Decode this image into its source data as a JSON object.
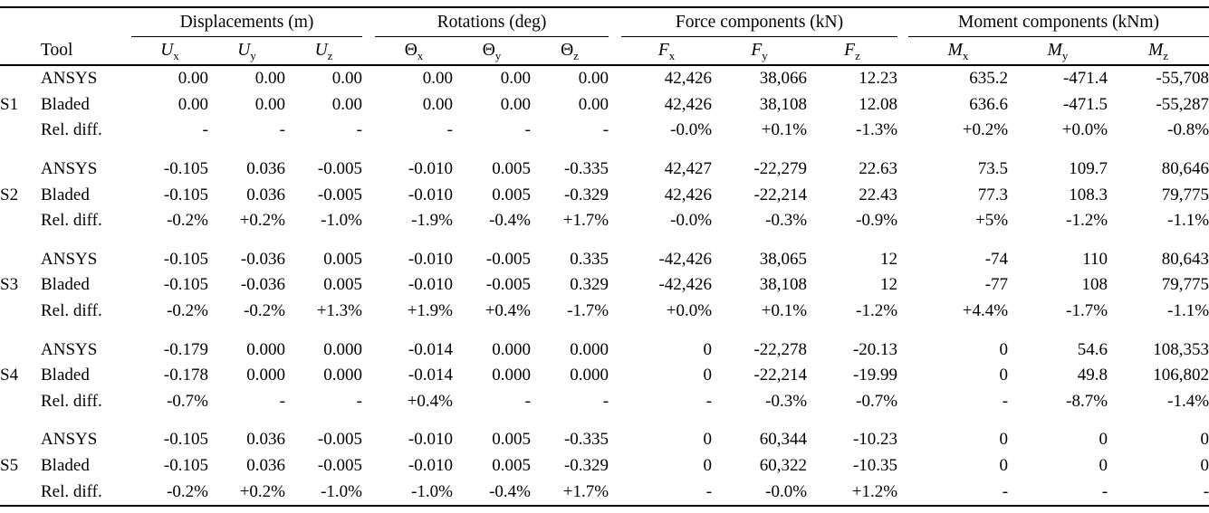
{
  "table": {
    "tool_header": "Tool",
    "group_headers": [
      {
        "label": "Displacements (m)"
      },
      {
        "label": "Rotations (deg)"
      },
      {
        "label": "Force components (kN)"
      },
      {
        "label": "Moment components (kNm)"
      }
    ],
    "columns": [
      {
        "sym": "U",
        "sub": "x",
        "italic": true
      },
      {
        "sym": "U",
        "sub": "y",
        "italic": true
      },
      {
        "sym": "U",
        "sub": "z",
        "italic": true
      },
      {
        "sym": "Θ",
        "sub": "x",
        "italic": false
      },
      {
        "sym": "Θ",
        "sub": "y",
        "italic": false
      },
      {
        "sym": "Θ",
        "sub": "z",
        "italic": false
      },
      {
        "sym": "F",
        "sub": "x",
        "italic": true
      },
      {
        "sym": "F",
        "sub": "y",
        "italic": true
      },
      {
        "sym": "F",
        "sub": "z",
        "italic": true
      },
      {
        "sym": "M",
        "sub": "x",
        "italic": true
      },
      {
        "sym": "M",
        "sub": "y",
        "italic": true
      },
      {
        "sym": "M",
        "sub": "z",
        "italic": true
      }
    ],
    "groups": [
      {
        "id": "S1",
        "rows": [
          {
            "tool": "ANSYS",
            "values": [
              "0.00",
              "0.00",
              "0.00",
              "0.00",
              "0.00",
              "0.00",
              "42,426",
              "38,066",
              "12.23",
              "635.2",
              "-471.4",
              "-55,708"
            ]
          },
          {
            "tool": "Bladed",
            "values": [
              "0.00",
              "0.00",
              "0.00",
              "0.00",
              "0.00",
              "0.00",
              "42,426",
              "38,108",
              "12.08",
              "636.6",
              "-471.5",
              "-55,287"
            ]
          },
          {
            "tool": "Rel. diff.",
            "values": [
              "-",
              "-",
              "-",
              "-",
              "-",
              "-",
              "-0.0%",
              "+0.1%",
              "-1.3%",
              "+0.2%",
              "+0.0%",
              "-0.8%"
            ]
          }
        ]
      },
      {
        "id": "S2",
        "rows": [
          {
            "tool": "ANSYS",
            "values": [
              "-0.105",
              "0.036",
              "-0.005",
              "-0.010",
              "0.005",
              "-0.335",
              "42,427",
              "-22,279",
              "22.63",
              "73.5",
              "109.7",
              "80,646"
            ]
          },
          {
            "tool": "Bladed",
            "values": [
              "-0.105",
              "0.036",
              "-0.005",
              "-0.010",
              "0.005",
              "-0.329",
              "42,426",
              "-22,214",
              "22.43",
              "77.3",
              "108.3",
              "79,775"
            ]
          },
          {
            "tool": "Rel. diff.",
            "values": [
              "-0.2%",
              "+0.2%",
              "-1.0%",
              "-1.9%",
              "-0.4%",
              "+1.7%",
              "-0.0%",
              "-0.3%",
              "-0.9%",
              "+5%",
              "-1.2%",
              "-1.1%"
            ]
          }
        ]
      },
      {
        "id": "S3",
        "rows": [
          {
            "tool": "ANSYS",
            "values": [
              "-0.105",
              "-0.036",
              "0.005",
              "-0.010",
              "-0.005",
              "0.335",
              "-42,426",
              "38,065",
              "12",
              "-74",
              "110",
              "80,643"
            ]
          },
          {
            "tool": "Bladed",
            "values": [
              "-0.105",
              "-0.036",
              "0.005",
              "-0.010",
              "-0.005",
              "0.329",
              "-42,426",
              "38,108",
              "12",
              "-77",
              "108",
              "79,775"
            ]
          },
          {
            "tool": "Rel. diff.",
            "values": [
              "-0.2%",
              "-0.2%",
              "+1.3%",
              "+1.9%",
              "+0.4%",
              "-1.7%",
              "+0.0%",
              "+0.1%",
              "-1.2%",
              "+4.4%",
              "-1.7%",
              "-1.1%"
            ]
          }
        ]
      },
      {
        "id": "S4",
        "rows": [
          {
            "tool": "ANSYS",
            "values": [
              "-0.179",
              "0.000",
              "0.000",
              "-0.014",
              "0.000",
              "0.000",
              "0",
              "-22,278",
              "-20.13",
              "0",
              "54.6",
              "108,353"
            ]
          },
          {
            "tool": "Bladed",
            "values": [
              "-0.178",
              "0.000",
              "0.000",
              "-0.014",
              "0.000",
              "0.000",
              "0",
              "-22,214",
              "-19.99",
              "0",
              "49.8",
              "106,802"
            ]
          },
          {
            "tool": "Rel. diff.",
            "values": [
              "-0.7%",
              "-",
              "-",
              "+0.4%",
              "-",
              "-",
              "-",
              "-0.3%",
              "-0.7%",
              "-",
              "-8.7%",
              "-1.4%"
            ]
          }
        ]
      },
      {
        "id": "S5",
        "rows": [
          {
            "tool": "ANSYS",
            "values": [
              "-0.105",
              "0.036",
              "-0.005",
              "-0.010",
              "0.005",
              "-0.335",
              "0",
              "60,344",
              "-10.23",
              "0",
              "0",
              "0"
            ]
          },
          {
            "tool": "Bladed",
            "values": [
              "-0.105",
              "0.036",
              "-0.005",
              "-0.010",
              "0.005",
              "-0.329",
              "0",
              "60,322",
              "-10.35",
              "0",
              "0",
              "0"
            ]
          },
          {
            "tool": "Rel. diff.",
            "values": [
              "-0.2%",
              "+0.2%",
              "-1.0%",
              "-1.0%",
              "-0.4%",
              "+1.7%",
              "-",
              "-0.0%",
              "+1.2%",
              "-",
              "-",
              "-"
            ]
          }
        ]
      }
    ]
  }
}
